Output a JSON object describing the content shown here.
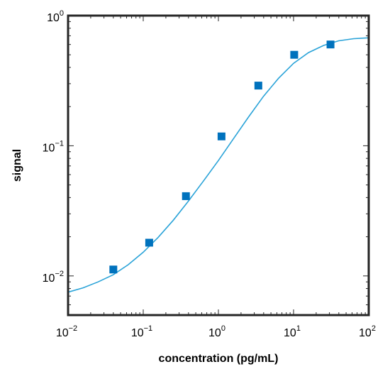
{
  "chart_data": {
    "type": "scatter",
    "title": "",
    "xlabel": "concentration (pg/mL)",
    "ylabel": "signal",
    "xscale": "log",
    "yscale": "log",
    "xlim": [
      0.01,
      100
    ],
    "ylim": [
      0.005,
      1
    ],
    "grid": false,
    "legend": "none",
    "x_ticks": [
      {
        "value": 0.01,
        "base": "10",
        "exp": "−2"
      },
      {
        "value": 0.1,
        "base": "10",
        "exp": "−1"
      },
      {
        "value": 1,
        "base": "10",
        "exp": "0"
      },
      {
        "value": 10,
        "base": "10",
        "exp": "1"
      },
      {
        "value": 100,
        "base": "10",
        "exp": "2"
      }
    ],
    "y_ticks": [
      {
        "value": 0.01,
        "base": "10",
        "exp": "−2"
      },
      {
        "value": 0.1,
        "base": "10",
        "exp": "−1"
      },
      {
        "value": 1,
        "base": "10",
        "exp": "0"
      }
    ],
    "series": [
      {
        "kind": "markers",
        "marker": "square",
        "color": "#0072bd",
        "x": [
          0.04,
          0.12,
          0.37,
          1.1,
          3.4,
          10.2,
          31
        ],
        "y": [
          0.0112,
          0.018,
          0.041,
          0.118,
          0.29,
          0.5,
          0.6
        ]
      },
      {
        "kind": "fit-line",
        "color": "#2aa3d8",
        "x": [
          0.01,
          0.0158,
          0.0251,
          0.0398,
          0.0631,
          0.1,
          0.158,
          0.251,
          0.398,
          0.631,
          1,
          1.58,
          2.51,
          3.98,
          6.31,
          10,
          15.8,
          25.1,
          39.8,
          63.1,
          100
        ],
        "y": [
          0.0075,
          0.0081,
          0.009,
          0.0102,
          0.0122,
          0.0152,
          0.0198,
          0.0268,
          0.0375,
          0.0535,
          0.077,
          0.113,
          0.166,
          0.24,
          0.33,
          0.43,
          0.52,
          0.59,
          0.64,
          0.665,
          0.675
        ]
      }
    ]
  }
}
